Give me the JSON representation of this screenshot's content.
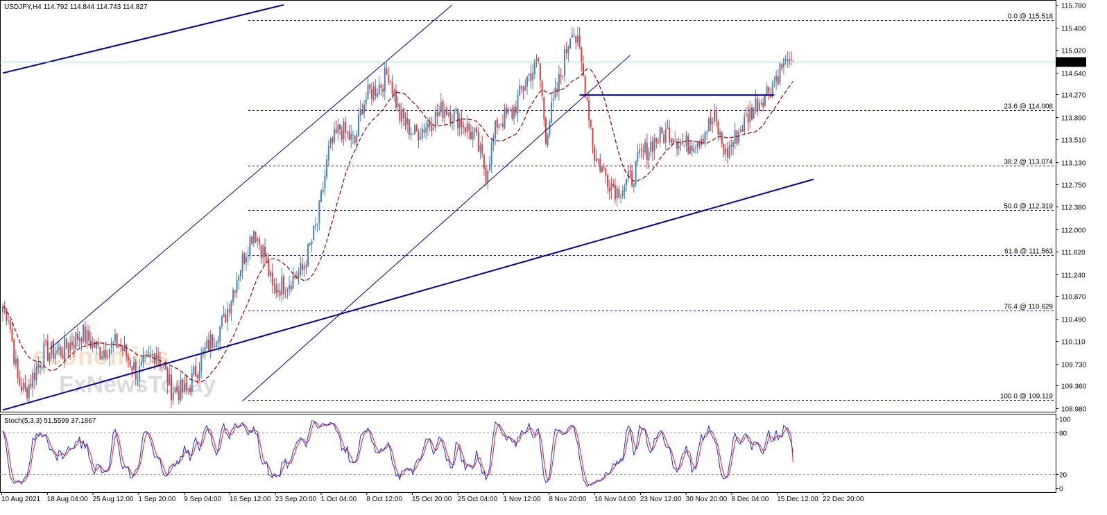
{
  "chart_data": {
    "type": "candlestick",
    "symbol_header": "USDJPY,H4  114.792 114.844 114.743 114.827",
    "ylim": [
      108.98,
      115.78
    ],
    "y_ticks": [
      "115.780",
      "115.400",
      "115.020",
      "114.640",
      "114.270",
      "113.890",
      "113.510",
      "113.130",
      "112.750",
      "112.380",
      "112.000",
      "111.620",
      "111.240",
      "110.870",
      "110.490",
      "110.110",
      "109.730",
      "109.360",
      "108.980"
    ],
    "current_price": {
      "value": 114.827,
      "label": "114.827"
    },
    "x_labels": [
      "10 Aug 2021",
      "18 Aug 04:00",
      "25 Aug 12:00",
      "1 Sep 20:00",
      "9 Sep 04:00",
      "16 Sep 12:00",
      "23 Sep 20:00",
      "1 Oct 04:00",
      "8 Oct 12:00",
      "15 Oct 20:00",
      "25 Oct 04:00",
      "1 Nov 12:00",
      "8 Nov 20:00",
      "16 Nov 04:00",
      "23 Nov 12:00",
      "30 Nov 20:00",
      "8 Dec 04:00",
      "15 Dec 12:00",
      "22 Dec 20:00"
    ],
    "fib_levels": [
      {
        "ratio": "0.0",
        "value": 115.518,
        "label": "0.0 @ 115.518"
      },
      {
        "ratio": "23.6",
        "value": 114.008,
        "label": "23.6 @ 114.008"
      },
      {
        "ratio": "38.2",
        "value": 113.074,
        "label": "38.2 @ 113.074"
      },
      {
        "ratio": "50.0",
        "value": 112.319,
        "label": "50.0 @ 112.319"
      },
      {
        "ratio": "61.8",
        "value": 111.563,
        "label": "61.8 @ 111.563"
      },
      {
        "ratio": "76.4",
        "value": 110.629,
        "label": "76.4 @ 110.629"
      },
      {
        "ratio": "100.0",
        "value": 109.119,
        "label": "100.0 @ 109.119"
      }
    ],
    "price_anchors": [
      [
        0,
        110.7
      ],
      [
        3,
        110.55
      ],
      [
        8,
        109.45
      ],
      [
        12,
        109.25
      ],
      [
        22,
        109.92
      ],
      [
        32,
        109.95
      ],
      [
        42,
        110.25
      ],
      [
        52,
        109.95
      ],
      [
        62,
        110.08
      ],
      [
        72,
        109.55
      ],
      [
        82,
        109.95
      ],
      [
        90,
        109.3
      ],
      [
        98,
        109.25
      ],
      [
        108,
        109.95
      ],
      [
        118,
        110.45
      ],
      [
        126,
        111.3
      ],
      [
        134,
        112.0
      ],
      [
        140,
        111.55
      ],
      [
        144,
        110.98
      ],
      [
        152,
        111.1
      ],
      [
        160,
        111.3
      ],
      [
        168,
        112.1
      ],
      [
        174,
        113.3
      ],
      [
        180,
        113.7
      ],
      [
        188,
        113.45
      ],
      [
        192,
        114.1
      ],
      [
        196,
        114.3
      ],
      [
        202,
        114.45
      ],
      [
        206,
        114.65
      ],
      [
        212,
        113.9
      ],
      [
        220,
        113.6
      ],
      [
        228,
        113.8
      ],
      [
        236,
        114.05
      ],
      [
        244,
        113.85
      ],
      [
        252,
        113.55
      ],
      [
        258,
        112.95
      ],
      [
        264,
        113.8
      ],
      [
        272,
        113.95
      ],
      [
        280,
        114.55
      ],
      [
        286,
        114.8
      ],
      [
        290,
        113.6
      ],
      [
        298,
        114.6
      ],
      [
        304,
        115.45
      ],
      [
        308,
        114.95
      ],
      [
        312,
        114.2
      ],
      [
        316,
        113.25
      ],
      [
        322,
        112.9
      ],
      [
        328,
        112.65
      ],
      [
        336,
        112.85
      ],
      [
        340,
        113.2
      ],
      [
        348,
        113.5
      ],
      [
        356,
        113.65
      ],
      [
        364,
        113.4
      ],
      [
        372,
        113.55
      ],
      [
        380,
        113.85
      ],
      [
        386,
        113.25
      ],
      [
        394,
        113.7
      ],
      [
        402,
        114.1
      ],
      [
        410,
        114.4
      ],
      [
        418,
        114.85
      ],
      [
        422,
        114.82
      ]
    ],
    "moving_average": {
      "period": "unlabeled",
      "style": "dashed",
      "color": "#8b0000"
    },
    "trendlines": [
      {
        "name": "upper-channel-top",
        "from": [
          0,
          114.63
        ],
        "to": [
          150,
          115.78
        ]
      },
      {
        "name": "rising-support",
        "from": [
          0,
          108.95
        ],
        "to": [
          433,
          112.84
        ]
      },
      {
        "name": "channel-upper",
        "from": [
          25,
          109.98
        ],
        "to": [
          240,
          115.78
        ]
      },
      {
        "name": "channel-lower",
        "from": [
          128,
          109.1
        ],
        "to": [
          335,
          114.93
        ]
      },
      {
        "name": "horizontal-resistance",
        "from": [
          308,
          114.26
        ],
        "to": [
          412,
          114.26
        ]
      }
    ],
    "stochastic": {
      "label": "Stoch(5,3,3) 51.5599 37.1867",
      "main": 51.5599,
      "signal": 37.1867,
      "levels": [
        20,
        80
      ],
      "y_ticks": [
        "100",
        "80",
        "20",
        "0"
      ],
      "main_color": "#1e2bd6",
      "signal_color": "#e11b1b"
    },
    "colors": {
      "bull": "#4682b4",
      "bear": "#e23b3b",
      "line": "#00008b",
      "current": "#9fdfe8"
    }
  },
  "watermark": {
    "line1": "economies",
    "line2": "FxNewsToday"
  }
}
